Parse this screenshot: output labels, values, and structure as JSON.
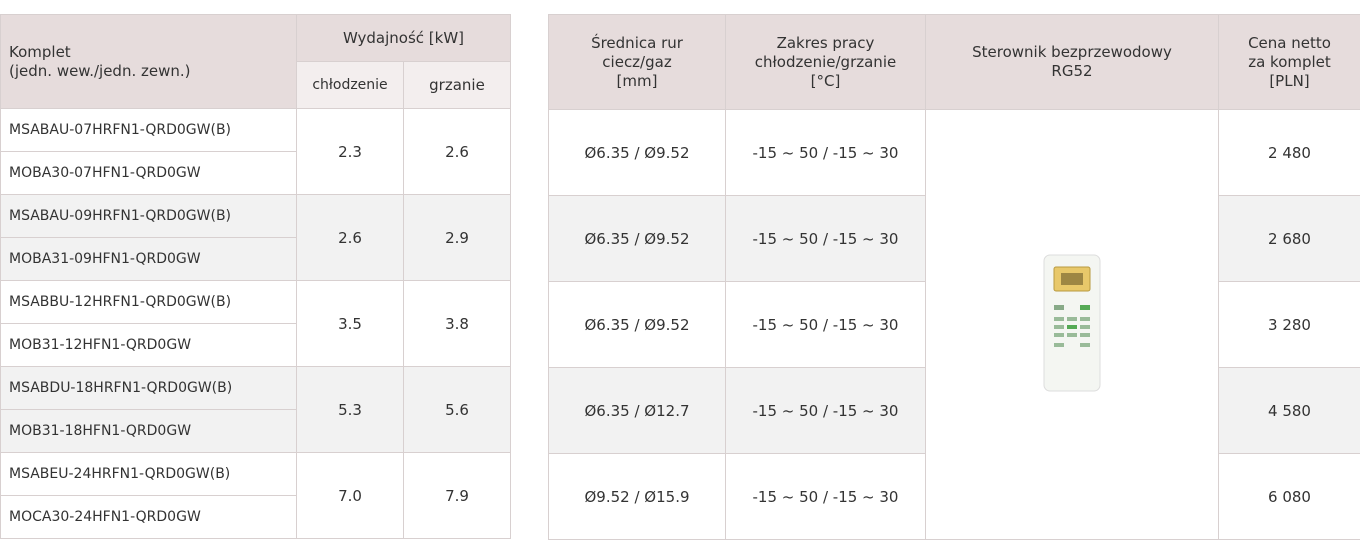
{
  "left_table": {
    "header": {
      "komplet": [
        "Komplet",
        "(jedn. wew./jedn. zewn.)"
      ],
      "wydajnosc": "Wydajność [kW]",
      "chlodzenie": "chłodzenie",
      "grzanie": "grzanie"
    },
    "rows": [
      {
        "indoor": "MSABAU-07HRFN1-QRD0GW(B)",
        "outdoor": "MOBA30-07HFN1-QRD0GW",
        "cooling": "2.3",
        "heating": "2.6"
      },
      {
        "indoor": "MSABAU-09HRFN1-QRD0GW(B)",
        "outdoor": "MOBA31-09HFN1-QRD0GW",
        "cooling": "2.6",
        "heating": "2.9"
      },
      {
        "indoor": "MSABBU-12HRFN1-QRD0GW(B)",
        "outdoor": "MOB31-12HFN1-QRD0GW",
        "cooling": "3.5",
        "heating": "3.8"
      },
      {
        "indoor": "MSABDU-18HRFN1-QRD0GW(B)",
        "outdoor": "MOB31-18HFN1-QRD0GW",
        "cooling": "5.3",
        "heating": "5.6"
      },
      {
        "indoor": "MSABEU-24HRFN1-QRD0GW(B)",
        "outdoor": "MOCA30-24HFN1-QRD0GW",
        "cooling": "7.0",
        "heating": "7.9"
      }
    ]
  },
  "right_table": {
    "header": {
      "pipes": [
        "Średnica rur",
        "ciecz/gaz",
        "[mm]"
      ],
      "range": [
        "Zakres pracy",
        "chłodzenie/grzanie",
        "[°C]"
      ],
      "controller": [
        "Sterownik bezprzewodowy",
        "RG52"
      ],
      "price": [
        "Cena netto",
        "za komplet",
        "[PLN]"
      ]
    },
    "rows": [
      {
        "pipes": "Ø6.35 / Ø9.52",
        "range": "-15 ~ 50 / -15 ~ 30",
        "price": "2 480"
      },
      {
        "pipes": "Ø6.35 / Ø9.52",
        "range": "-15 ~ 50 / -15 ~ 30",
        "price": "2 680"
      },
      {
        "pipes": "Ø6.35 / Ø9.52",
        "range": "-15 ~ 50 / -15 ~ 30",
        "price": "3 280"
      },
      {
        "pipes": "Ø6.35 / Ø12.7",
        "range": "-15 ~ 50 / -15 ~ 30",
        "price": "4 580"
      },
      {
        "pipes": "Ø9.52 / Ø15.9",
        "range": "-15 ~ 50 / -15 ~ 30",
        "price": "6 080"
      }
    ]
  }
}
